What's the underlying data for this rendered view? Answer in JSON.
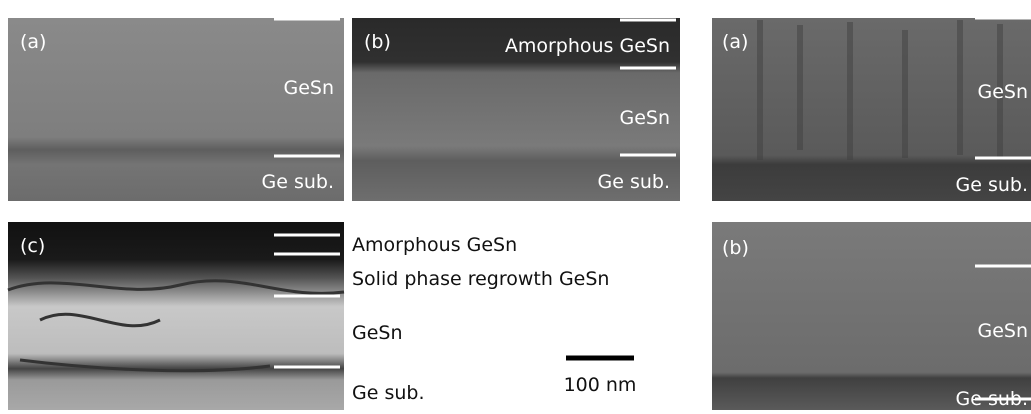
{
  "panels": [
    {
      "label": "(a)",
      "layers": [
        "GeSn",
        "Ge sub."
      ]
    },
    {
      "label": "(b)",
      "layers": [
        "Amorphous GeSn",
        "GeSn",
        "Ge sub."
      ]
    },
    {
      "label": "(c)"
    },
    {
      "label": "(a)",
      "layers": [
        "GeSn",
        "Ge sub."
      ]
    },
    {
      "label": "(b)",
      "layers": [
        "GeSn",
        "Ge sub."
      ]
    }
  ],
  "annotations": [
    "Amorphous GeSn",
    "Solid phase regrowth GeSn",
    "GeSn",
    "Ge sub."
  ],
  "scale_bar": "100 nm"
}
